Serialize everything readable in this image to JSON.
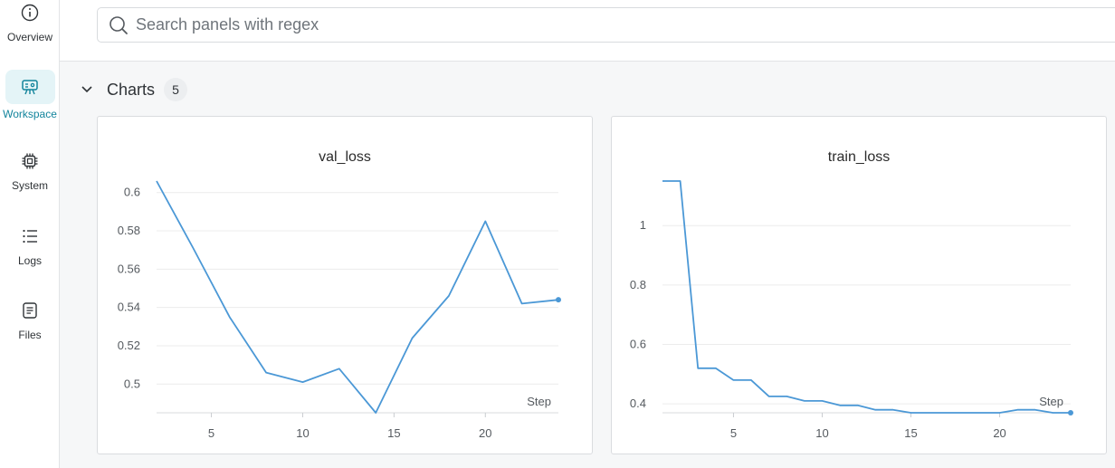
{
  "sidebar": {
    "items": [
      {
        "label": "Overview",
        "icon": "info-icon",
        "active": false
      },
      {
        "label": "Workspace",
        "icon": "workspace-icon",
        "active": true
      },
      {
        "label": "System",
        "icon": "chip-icon",
        "active": false
      },
      {
        "label": "Logs",
        "icon": "list-icon",
        "active": false
      },
      {
        "label": "Files",
        "icon": "file-icon",
        "active": false
      }
    ]
  },
  "search": {
    "placeholder": "Search panels with regex"
  },
  "section": {
    "title": "Charts",
    "count": "5"
  },
  "colors": {
    "line": "#4b98d6",
    "grid": "#ececec",
    "accent": "#12849c"
  },
  "chart_data": [
    {
      "type": "line",
      "title": "val_loss",
      "xlabel": "Step",
      "ylabel": "",
      "x": [
        2,
        4,
        6,
        8,
        10,
        12,
        14,
        16,
        18,
        20,
        22,
        24
      ],
      "series": [
        {
          "values": [
            0.606,
            0.571,
            0.535,
            0.506,
            0.501,
            0.508,
            0.485,
            0.524,
            0.546,
            0.585,
            0.542,
            0.544
          ]
        }
      ],
      "xticks": [
        5,
        10,
        15,
        20
      ],
      "yticks": [
        0.5,
        0.52,
        0.54,
        0.56,
        0.58,
        0.6
      ],
      "xlim": [
        2,
        24
      ],
      "ylim": [
        0.485,
        0.606
      ],
      "grid": true
    },
    {
      "type": "line",
      "title": "train_loss",
      "xlabel": "Step",
      "ylabel": "",
      "x": [
        1,
        2,
        3,
        4,
        5,
        6,
        7,
        8,
        9,
        10,
        11,
        12,
        13,
        14,
        15,
        16,
        17,
        18,
        19,
        20,
        21,
        22,
        23,
        24
      ],
      "series": [
        {
          "values": [
            1.15,
            1.15,
            0.52,
            0.52,
            0.48,
            0.48,
            0.425,
            0.425,
            0.41,
            0.41,
            0.395,
            0.395,
            0.38,
            0.38,
            0.37,
            0.37,
            0.37,
            0.37,
            0.37,
            0.37,
            0.38,
            0.38,
            0.37,
            0.37
          ]
        }
      ],
      "xticks": [
        5,
        10,
        15,
        20
      ],
      "yticks": [
        0.4,
        0.6,
        0.8,
        1
      ],
      "xlim": [
        1,
        24
      ],
      "ylim": [
        0.37,
        1.15
      ],
      "grid": true
    }
  ]
}
